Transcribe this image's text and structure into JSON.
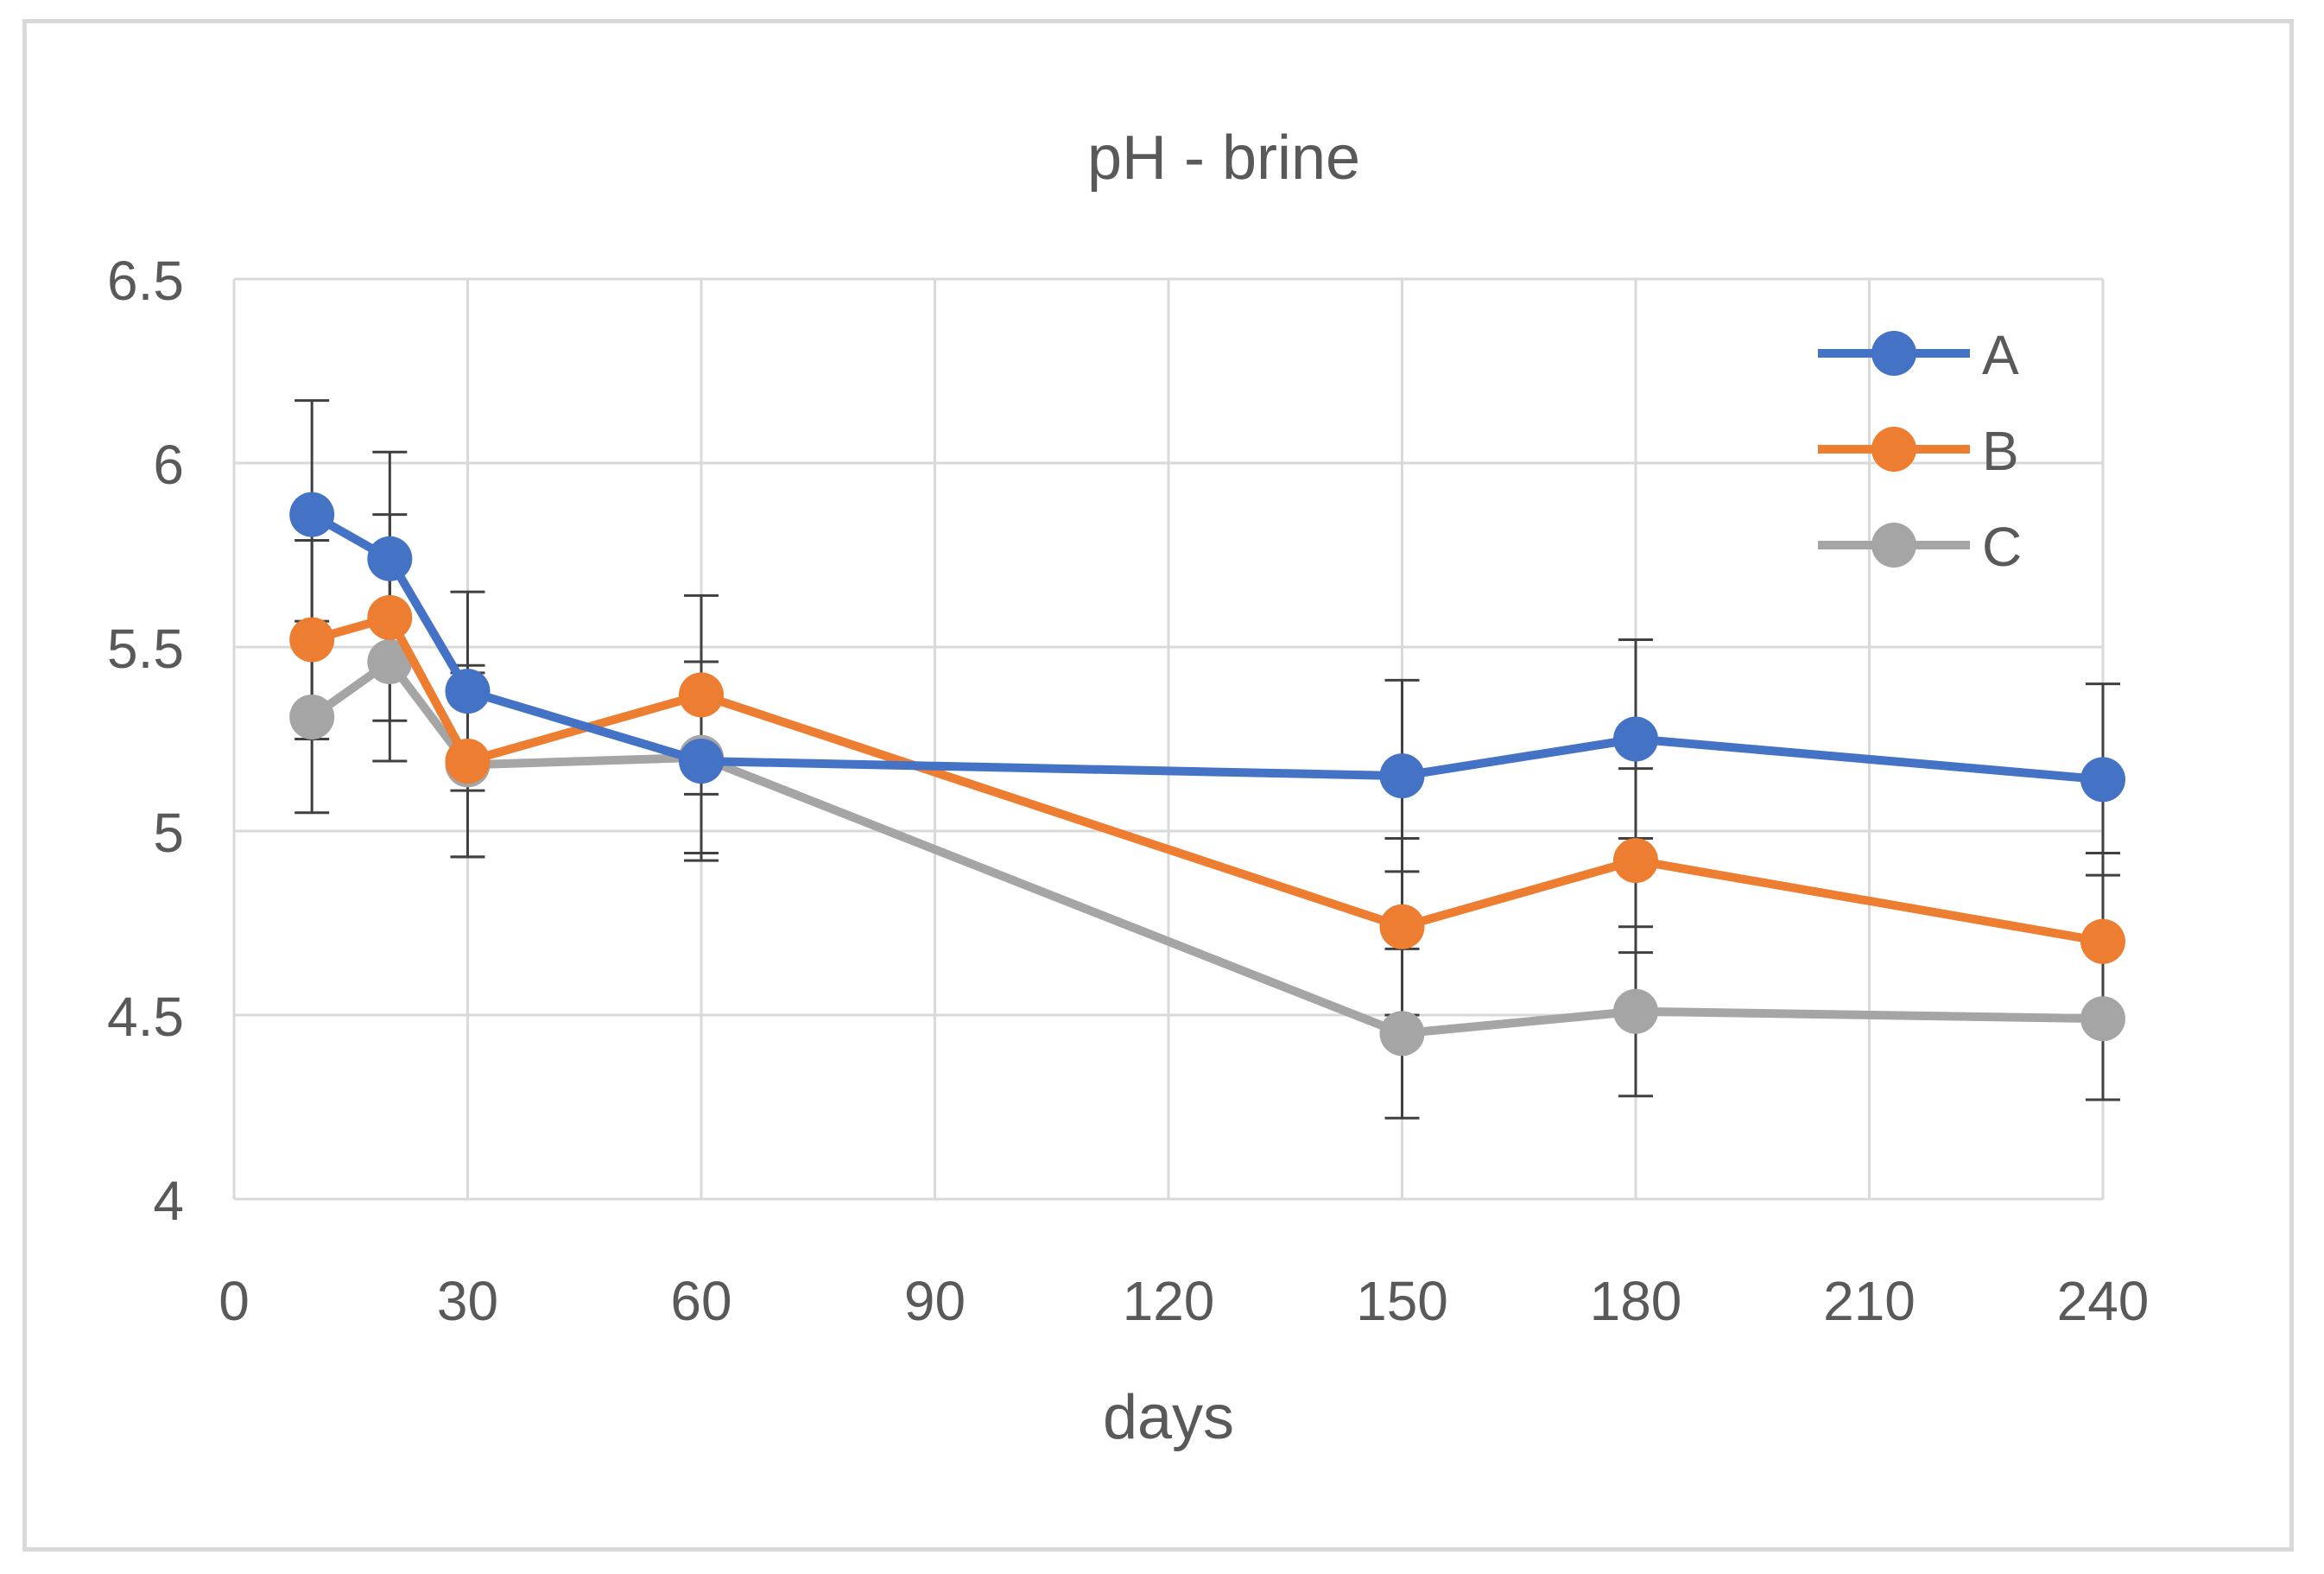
{
  "colors": {
    "A": "#4472c4",
    "B": "#ed7d31",
    "C": "#a5a5a5",
    "grid": "#d9d9d9",
    "text": "#595959",
    "error_bar": "#404040"
  },
  "chart_data": {
    "type": "line",
    "title": "pH - brine",
    "xlabel": "days",
    "ylabel": "",
    "xlim": [
      0,
      240
    ],
    "ylim": [
      4,
      6.5
    ],
    "xticks": [
      "0",
      "30",
      "60",
      "90",
      "120",
      "150",
      "180",
      "210",
      "240"
    ],
    "xtick_values": [
      0,
      30,
      60,
      90,
      120,
      150,
      180,
      210,
      240
    ],
    "yticks": [
      "4",
      "4.5",
      "5",
      "5.5",
      "6",
      "6.5"
    ],
    "ytick_values": [
      4,
      4.5,
      5,
      5.5,
      6,
      6.5
    ],
    "grid": true,
    "legend": "top-right",
    "x": [
      10,
      20,
      30,
      60,
      150,
      180,
      240
    ],
    "series": [
      {
        "name": "A",
        "values": [
          5.86,
          5.74,
          5.38,
          5.19,
          5.15,
          5.25,
          5.14
        ],
        "errors": [
          0.31,
          0.29,
          0.27,
          0.27,
          0.26,
          0.27,
          0.26
        ]
      },
      {
        "name": "B",
        "values": [
          5.52,
          5.58,
          5.19,
          5.37,
          4.74,
          4.92,
          4.7
        ],
        "errors": [
          0.27,
          0.28,
          0.26,
          0.27,
          0.24,
          0.25,
          0.24
        ]
      },
      {
        "name": "C",
        "values": [
          5.31,
          5.46,
          5.18,
          5.2,
          4.45,
          4.51,
          4.49
        ],
        "errors": [
          0.26,
          0.27,
          0.25,
          0.26,
          0.23,
          0.23,
          0.22
        ]
      }
    ]
  }
}
